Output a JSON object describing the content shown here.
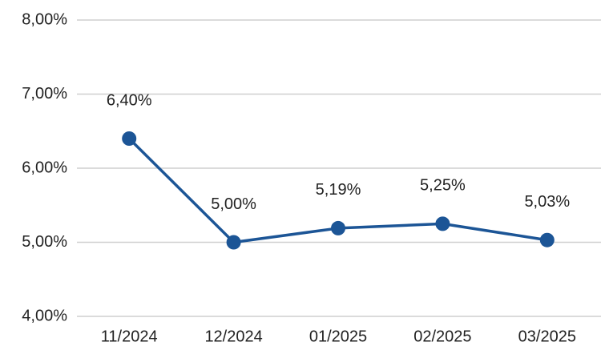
{
  "chart_data": {
    "type": "line",
    "categories": [
      "11/2024",
      "12/2024",
      "01/2025",
      "02/2025",
      "03/2025"
    ],
    "series": [
      {
        "color": "#1c5596",
        "values": [
          6.4,
          5.0,
          5.19,
          5.25,
          5.03
        ],
        "value_labels": [
          "6,40%",
          "5,00%",
          "5,19%",
          "5,25%",
          "5,03%"
        ]
      }
    ],
    "ylim": [
      4,
      8
    ],
    "yticks": [
      {
        "value": 4,
        "label": "4,00%"
      },
      {
        "value": 5,
        "label": "5,00%"
      },
      {
        "value": 6,
        "label": "6,00%"
      },
      {
        "value": 7,
        "label": "7,00%"
      },
      {
        "value": 8,
        "label": "8,00%"
      }
    ],
    "grid": true
  }
}
